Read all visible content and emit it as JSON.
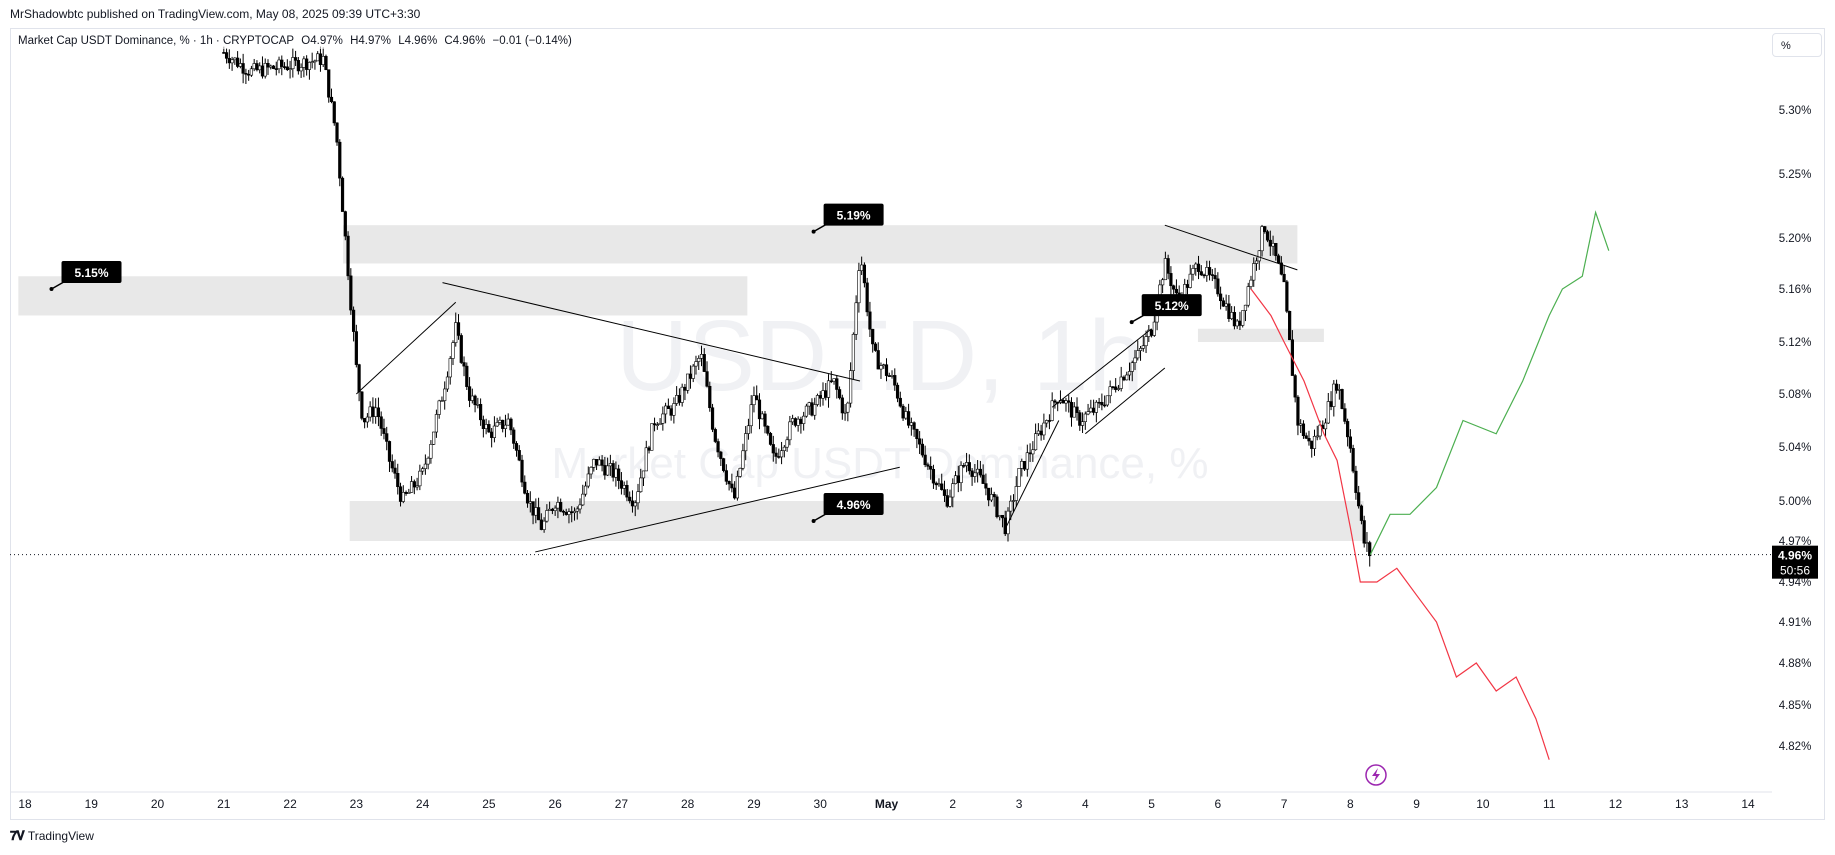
{
  "header": {
    "publisher_line": "MrShadowbtc published on TradingView.com, May 08, 2025 09:39 UTC+3:30"
  },
  "legend": {
    "symbol": "Market Cap USDT Dominance, % · 1h · CRYPTOCAP",
    "open": "O4.97%",
    "high": "H4.97%",
    "low": "L4.96%",
    "close": "C4.96%",
    "change": "−0.01 (−0.14%)"
  },
  "scale_button": "%",
  "watermark": {
    "ticker": "USDT.D, 1h",
    "name": "Market Cap USDT Dominance, %"
  },
  "last_price": {
    "value": "4.96%",
    "countdown": "50:56"
  },
  "footer": {
    "brand": "TradingView",
    "logo": "tv-logo-icon"
  },
  "colors": {
    "text": "#131722",
    "zone": "#e8e8e8",
    "green": "#4caf50",
    "red": "#f23645",
    "label_bg": "#000000",
    "flash": "#9c27b0"
  },
  "chart_data": {
    "type": "candlestick",
    "title": "Market Cap USDT Dominance, %",
    "timeframe": "1h",
    "x_ticks": [
      "18",
      "19",
      "20",
      "21",
      "22",
      "23",
      "24",
      "25",
      "26",
      "27",
      "28",
      "29",
      "30",
      "May",
      "2",
      "3",
      "4",
      "5",
      "6",
      "7",
      "8",
      "9",
      "10",
      "11",
      "12",
      "13",
      "14"
    ],
    "y_ticks": [
      "5.30%",
      "5.25%",
      "5.20%",
      "5.16%",
      "5.12%",
      "5.08%",
      "5.04%",
      "5.00%",
      "4.97%",
      "4.94%",
      "4.91%",
      "4.88%",
      "4.85%",
      "4.82%"
    ],
    "y_range": [
      4.8,
      5.34
    ],
    "y_scale": "log",
    "x_range_days": [
      17.9,
      44.6
    ],
    "price_path": [
      [
        21.0,
        5.345
      ],
      [
        21.4,
        5.33
      ],
      [
        22.0,
        5.335
      ],
      [
        22.5,
        5.34
      ],
      [
        22.7,
        5.28
      ],
      [
        22.8,
        5.22
      ],
      [
        22.9,
        5.16
      ],
      [
        23.0,
        5.1
      ],
      [
        23.1,
        5.06
      ],
      [
        23.3,
        5.07
      ],
      [
        23.5,
        5.03
      ],
      [
        23.7,
        5.0
      ],
      [
        24.0,
        5.02
      ],
      [
        24.3,
        5.08
      ],
      [
        24.5,
        5.13
      ],
      [
        24.7,
        5.08
      ],
      [
        25.0,
        5.05
      ],
      [
        25.3,
        5.06
      ],
      [
        25.6,
        5.0
      ],
      [
        25.8,
        4.98
      ],
      [
        26.0,
        5.0
      ],
      [
        26.3,
        4.99
      ],
      [
        26.6,
        5.03
      ],
      [
        26.9,
        5.02
      ],
      [
        27.2,
        5.0
      ],
      [
        27.5,
        5.06
      ],
      [
        27.8,
        5.07
      ],
      [
        28.2,
        5.11
      ],
      [
        28.4,
        5.05
      ],
      [
        28.7,
        5.0
      ],
      [
        29.0,
        5.08
      ],
      [
        29.3,
        5.03
      ],
      [
        29.6,
        5.06
      ],
      [
        29.9,
        5.07
      ],
      [
        30.2,
        5.09
      ],
      [
        30.4,
        5.06
      ],
      [
        30.6,
        5.19
      ],
      [
        30.8,
        5.11
      ],
      [
        31.1,
        5.09
      ],
      [
        31.3,
        5.06
      ],
      [
        31.6,
        5.03
      ],
      [
        31.9,
        5.0
      ],
      [
        32.2,
        5.03
      ],
      [
        32.5,
        5.01
      ],
      [
        32.8,
        4.98
      ],
      [
        33.0,
        5.02
      ],
      [
        33.3,
        5.05
      ],
      [
        33.6,
        5.08
      ],
      [
        33.9,
        5.06
      ],
      [
        34.2,
        5.07
      ],
      [
        34.5,
        5.09
      ],
      [
        34.8,
        5.11
      ],
      [
        35.0,
        5.13
      ],
      [
        35.2,
        5.18
      ],
      [
        35.4,
        5.15
      ],
      [
        35.7,
        5.18
      ],
      [
        36.0,
        5.16
      ],
      [
        36.3,
        5.13
      ],
      [
        36.5,
        5.17
      ],
      [
        36.7,
        5.21
      ],
      [
        36.9,
        5.18
      ],
      [
        37.0,
        5.16
      ],
      [
        37.2,
        5.06
      ],
      [
        37.4,
        5.04
      ],
      [
        37.6,
        5.06
      ],
      [
        37.8,
        5.09
      ],
      [
        38.0,
        5.04
      ],
      [
        38.2,
        4.97
      ],
      [
        38.3,
        4.96
      ]
    ],
    "projection_bullish": [
      [
        38.3,
        4.96
      ],
      [
        38.6,
        4.99
      ],
      [
        38.9,
        4.99
      ],
      [
        39.3,
        5.01
      ],
      [
        39.7,
        5.06
      ],
      [
        40.2,
        5.05
      ],
      [
        40.6,
        5.09
      ],
      [
        41.0,
        5.14
      ],
      [
        41.2,
        5.16
      ],
      [
        41.5,
        5.17
      ],
      [
        41.7,
        5.22
      ],
      [
        41.9,
        5.19
      ]
    ],
    "projection_bearish": [
      [
        36.5,
        5.16
      ],
      [
        36.8,
        5.14
      ],
      [
        37.0,
        5.12
      ],
      [
        37.3,
        5.09
      ],
      [
        37.6,
        5.05
      ],
      [
        37.8,
        5.03
      ],
      [
        38.0,
        4.98
      ],
      [
        38.15,
        4.94
      ],
      [
        38.4,
        4.94
      ],
      [
        38.7,
        4.95
      ],
      [
        39.0,
        4.93
      ],
      [
        39.3,
        4.91
      ],
      [
        39.6,
        4.87
      ],
      [
        39.9,
        4.88
      ],
      [
        40.2,
        4.86
      ],
      [
        40.5,
        4.87
      ],
      [
        40.8,
        4.84
      ],
      [
        41.0,
        4.81
      ]
    ],
    "zones": [
      {
        "from": 17.9,
        "to": 28.9,
        "low": 5.14,
        "high": 5.17
      },
      {
        "from": 22.8,
        "to": 37.2,
        "low": 5.18,
        "high": 5.21
      },
      {
        "from": 22.9,
        "to": 38.2,
        "low": 4.97,
        "high": 5.0
      },
      {
        "from": 35.7,
        "to": 37.6,
        "low": 5.12,
        "high": 5.13
      }
    ],
    "trendlines": [
      {
        "p1": [
          23.0,
          5.08
        ],
        "p2": [
          24.5,
          5.15
        ]
      },
      {
        "p1": [
          24.3,
          5.165
        ],
        "p2": [
          30.6,
          5.09
        ]
      },
      {
        "p1": [
          25.7,
          4.962
        ],
        "p2": [
          31.2,
          5.025
        ]
      },
      {
        "p1": [
          32.8,
          4.98
        ],
        "p2": [
          33.6,
          5.06
        ]
      },
      {
        "p1": [
          33.5,
          5.07
        ],
        "p2": [
          35.0,
          5.13
        ]
      },
      {
        "p1": [
          34.0,
          5.05
        ],
        "p2": [
          35.2,
          5.1
        ]
      },
      {
        "p1": [
          35.2,
          5.21
        ],
        "p2": [
          37.2,
          5.175
        ]
      }
    ],
    "annotations": [
      {
        "text": "5.15%",
        "x": 18.4,
        "y": 5.16
      },
      {
        "text": "5.19%",
        "x": 29.9,
        "y": 5.205
      },
      {
        "text": "4.96%",
        "x": 29.9,
        "y": 4.985
      },
      {
        "text": "5.12%",
        "x": 34.7,
        "y": 5.135
      }
    ],
    "last_value": 4.96,
    "grid": false
  }
}
